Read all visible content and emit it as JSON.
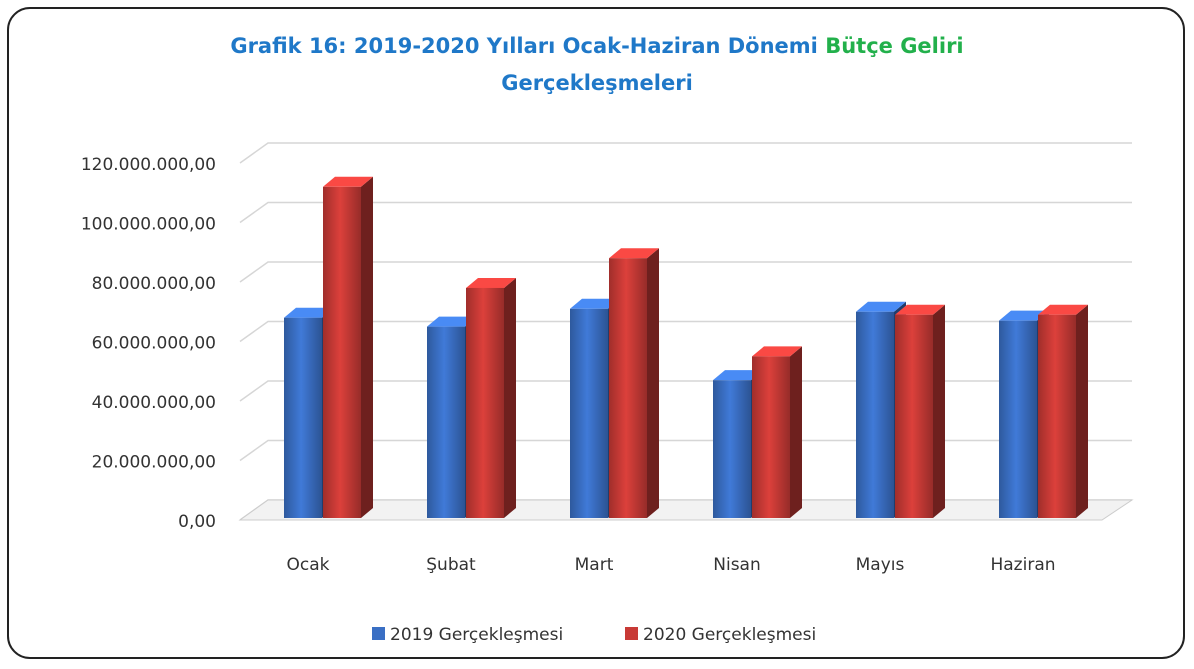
{
  "chart_data": {
    "type": "bar3d",
    "title": [
      {
        "text": "Grafik 16: 2019-2020 Yılları Ocak-Haziran Dönemi",
        "color": "#1f78c8"
      },
      {
        "text": "Bütçe Geliri",
        "color": "#22b04b"
      },
      {
        "text": "Gerçekleşmeleri",
        "color": "#1f78c8"
      }
    ],
    "categories": [
      "Ocak",
      "Şubat",
      "Mart",
      "Nisan",
      "Mayıs",
      "Haziran"
    ],
    "series": [
      {
        "name": "2019 Gerçekleşmesi",
        "color": "#3a6fc4",
        "values": [
          68000000,
          65000000,
          71000000,
          47000000,
          70000000,
          67000000
        ]
      },
      {
        "name": "2020 Gerçekleşmesi",
        "color": "#c83a36",
        "values": [
          112000000,
          78000000,
          88000000,
          55000000,
          69000000,
          69000000
        ]
      }
    ],
    "ylim": [
      0,
      120000000
    ],
    "yticks": [
      {
        "value": 0,
        "label": "0,00"
      },
      {
        "value": 20000000,
        "label": "20.000.000,00"
      },
      {
        "value": 40000000,
        "label": "40.000.000,00"
      },
      {
        "value": 60000000,
        "label": "60.000.000,00"
      },
      {
        "value": 80000000,
        "label": "80.000.000,00"
      },
      {
        "value": 100000000,
        "label": "100.000.000,00"
      },
      {
        "value": 120000000,
        "label": "120.000.000,00"
      }
    ],
    "grid": true
  }
}
